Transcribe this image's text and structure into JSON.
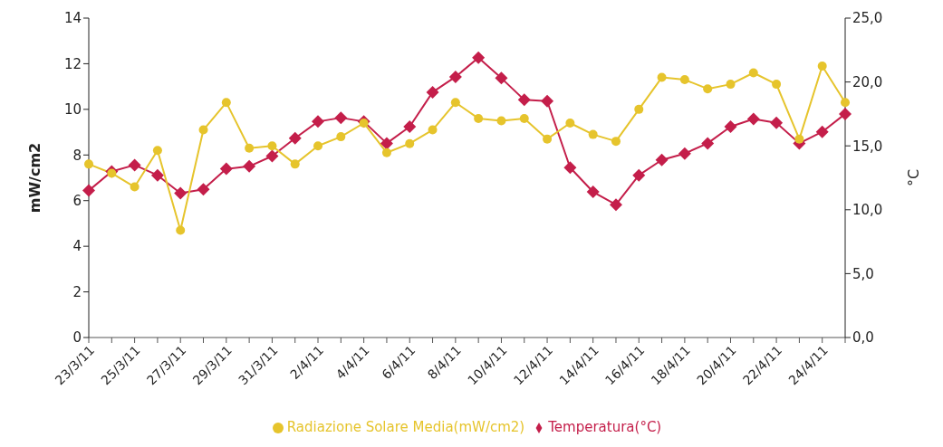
{
  "chart_data": {
    "type": "line",
    "ylabel": "mW/cm2",
    "y2label": "°C",
    "categories": [
      "23/3/11",
      null,
      "25/3/11",
      null,
      "27/3/11",
      null,
      "29/3/11",
      null,
      "31/3/11",
      null,
      "2/4/11",
      null,
      "4/4/11",
      null,
      "6/4/11",
      null,
      "8/4/11",
      null,
      "10/4/11",
      null,
      "12/4/11",
      null,
      "14/4/11",
      null,
      "16/4/11",
      null,
      "18/4/11",
      null,
      "20/4/11",
      null,
      "22/4/11",
      null,
      "24/4/11",
      null
    ],
    "series": [
      {
        "name": "Radiazione Solare Media(mW/cm2)",
        "color": "#e6c42c",
        "marker": "circle",
        "values": [
          7.6,
          7.2,
          6.6,
          8.2,
          4.7,
          9.1,
          10.3,
          8.3,
          8.4,
          7.6,
          8.4,
          8.8,
          9.4,
          8.1,
          8.5,
          9.1,
          10.3,
          9.6,
          9.5,
          9.6,
          8.7,
          9.4,
          8.9,
          8.6,
          10.0,
          11.4,
          11.3,
          10.9,
          11.1,
          11.6,
          11.1,
          8.7,
          11.9,
          10.3
        ]
      },
      {
        "name": "Temperatura(°C)",
        "color": "#c41e4a",
        "marker": "diamond",
        "axis": "y2",
        "values": [
          11.5,
          13.0,
          13.5,
          12.7,
          11.3,
          11.6,
          13.2,
          13.4,
          14.2,
          15.6,
          16.9,
          17.2,
          16.9,
          15.2,
          16.5,
          19.2,
          20.4,
          21.9,
          20.3,
          18.6,
          18.5,
          13.3,
          11.4,
          10.4,
          12.7,
          13.9,
          14.4,
          15.2,
          16.5,
          17.1,
          16.8,
          15.2,
          16.1,
          17.5
        ]
      }
    ],
    "ylim": [
      0,
      14
    ],
    "yticks": [
      0,
      2,
      4,
      6,
      8,
      10,
      12,
      14
    ],
    "y2lim": [
      0,
      25
    ],
    "y2ticks": [
      {
        "value": 0,
        "label": "0,0"
      },
      {
        "value": 5,
        "label": "5,0"
      },
      {
        "value": 10,
        "label": "10,0"
      },
      {
        "value": 15,
        "label": "15,0"
      },
      {
        "value": 20,
        "label": "20,0"
      },
      {
        "value": 25,
        "label": "25,0"
      }
    ],
    "legend": "bottom",
    "grid": false
  }
}
